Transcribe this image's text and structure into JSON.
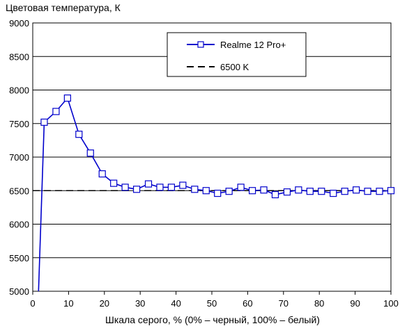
{
  "chart_data": {
    "type": "line",
    "ylabel": "Цветовая температура, К",
    "xlabel": "Шкала серого, % (0% – черный, 100% – белый)",
    "xlim": [
      0,
      100
    ],
    "ylim": [
      5000,
      9000
    ],
    "xticks": [
      "0",
      "10",
      "20",
      "30",
      "40",
      "50",
      "60",
      "70",
      "80",
      "90",
      "100"
    ],
    "yticks": [
      "5000",
      "5500",
      "6000",
      "6500",
      "7000",
      "7500",
      "8000",
      "8500",
      "9000"
    ],
    "grid": "horizontal",
    "legend_position": "top-right",
    "series": [
      {
        "name": "Realme 12 Pro+",
        "color": "#0000cc",
        "marker": "square",
        "x": [
          1.6,
          3.2,
          6.5,
          9.7,
          12.9,
          16.1,
          19.4,
          22.6,
          25.8,
          29.0,
          32.3,
          35.5,
          38.7,
          41.9,
          45.2,
          48.4,
          51.6,
          54.8,
          58.1,
          61.3,
          64.5,
          67.7,
          71.0,
          74.2,
          77.4,
          80.6,
          83.9,
          87.1,
          90.3,
          93.5,
          96.8,
          100.0
        ],
        "y": [
          4980,
          7520,
          7680,
          7880,
          7340,
          7060,
          6750,
          6610,
          6550,
          6520,
          6600,
          6550,
          6550,
          6580,
          6520,
          6500,
          6460,
          6490,
          6550,
          6500,
          6510,
          6440,
          6480,
          6510,
          6490,
          6490,
          6460,
          6490,
          6510,
          6490,
          6490,
          6500
        ]
      },
      {
        "name": "6500 K",
        "color": "#000000",
        "dash": true,
        "x": [
          0,
          100
        ],
        "y": [
          6500,
          6500
        ]
      }
    ]
  }
}
